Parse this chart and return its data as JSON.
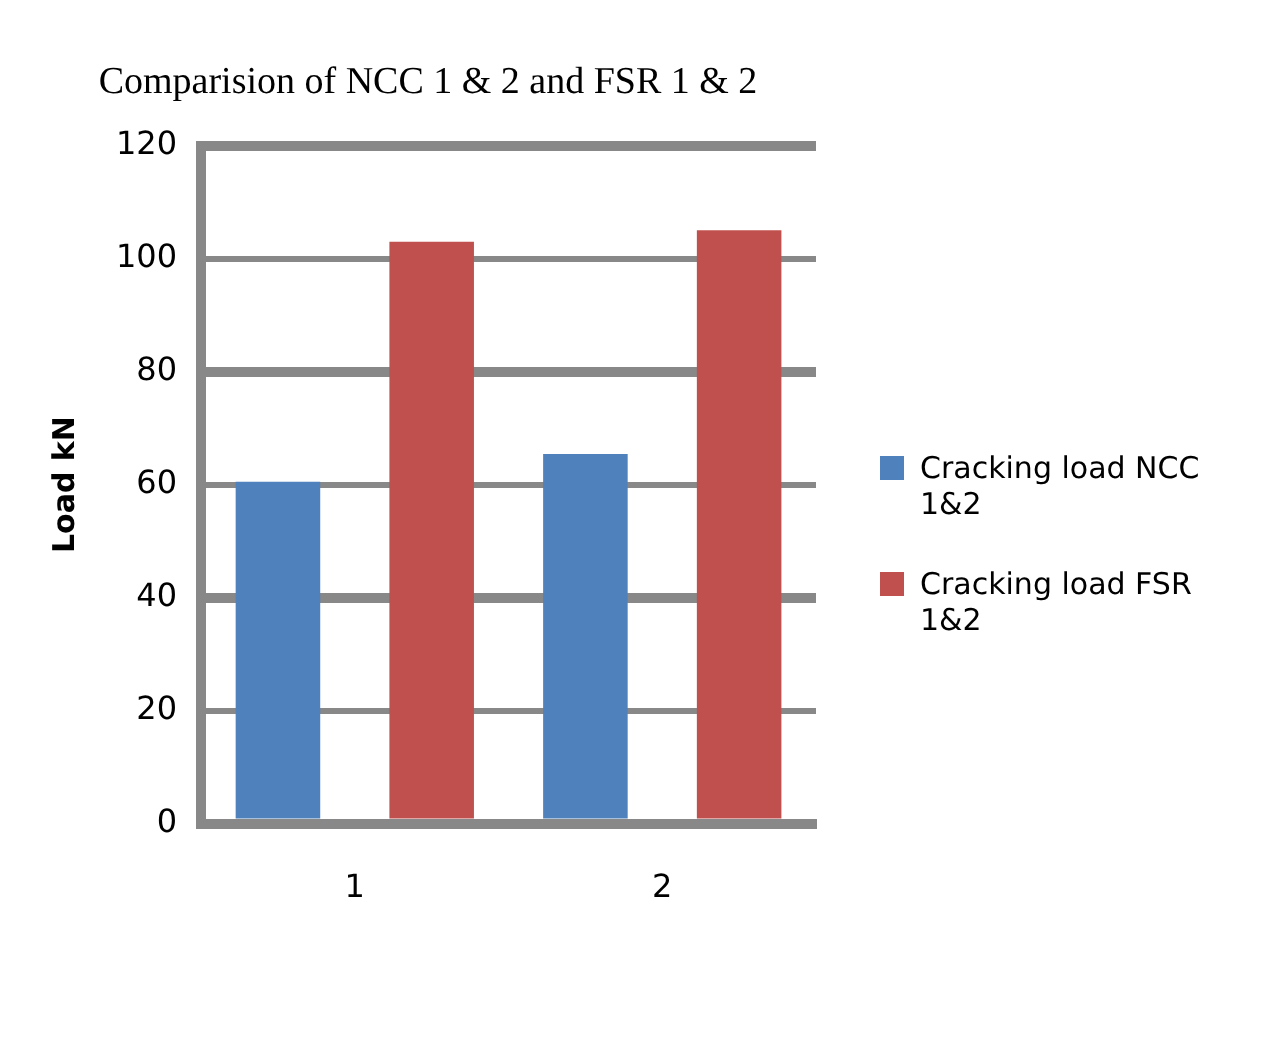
{
  "chart_data": {
    "type": "bar",
    "title": "Comparision of NCC 1 & 2 and FSR 1 & 2",
    "ylabel": "Load kN",
    "categories": [
      "1",
      "2"
    ],
    "series": [
      {
        "name": "Cracking load NCC 1&2",
        "color": "#4f81bd",
        "values": [
          60.5,
          65.4
        ]
      },
      {
        "name": "Cracking load FSR 1&2",
        "color": "#c0504d",
        "values": [
          103,
          105
        ]
      }
    ],
    "ylim": [
      0,
      120
    ],
    "yticks": [
      0,
      20,
      40,
      60,
      80,
      100,
      120
    ],
    "grid": "y",
    "legend": "right"
  }
}
